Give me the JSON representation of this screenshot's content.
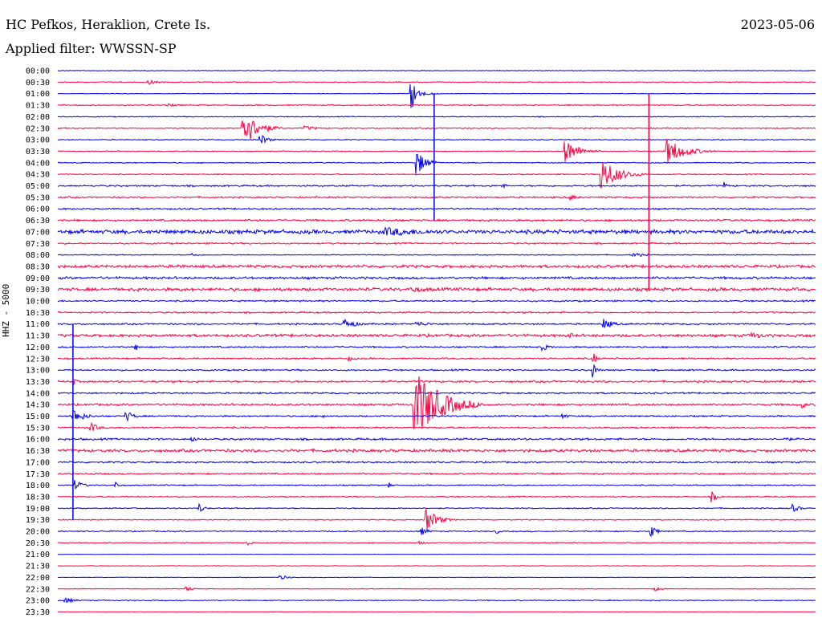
{
  "header": {
    "station": "HC Pefkos, Heraklion, Crete Is.",
    "date": "2023-05-06",
    "filter": "Applied filter: WWSSN-SP"
  },
  "chart_data": {
    "type": "line",
    "title": "HC Pefkos, Heraklion, Crete Is.",
    "ylabel": "HHZ - 5000",
    "row_labels": [
      "00:00",
      "00:30",
      "01:00",
      "01:30",
      "02:00",
      "02:30",
      "03:00",
      "03:30",
      "04:00",
      "04:30",
      "05:00",
      "05:30",
      "06:00",
      "06:30",
      "07:00",
      "07:30",
      "08:00",
      "08:30",
      "09:00",
      "09:30",
      "10:00",
      "10:30",
      "11:00",
      "11:30",
      "12:00",
      "12:30",
      "13:00",
      "13:30",
      "14:00",
      "14:30",
      "15:00",
      "15:30",
      "16:00",
      "16:30",
      "17:00",
      "17:30",
      "18:00",
      "18:30",
      "19:00",
      "19:30",
      "20:00",
      "20:30",
      "21:00",
      "21:30",
      "22:00",
      "22:30",
      "23:00",
      "23:30"
    ],
    "colors": {
      "even_rows": "#0000ee",
      "odd_rows": "#ff0040"
    },
    "noise_level": [
      0.3,
      0.5,
      0.3,
      0.6,
      0.5,
      0.6,
      0.5,
      0.5,
      0.5,
      0.5,
      0.8,
      0.8,
      0.8,
      1.0,
      2.0,
      0.8,
      0.5,
      1.4,
      1.2,
      1.6,
      0.8,
      0.8,
      0.8,
      1.4,
      0.8,
      0.8,
      0.8,
      1.0,
      0.8,
      1.0,
      0.8,
      0.8,
      1.0,
      1.4,
      0.8,
      0.8,
      0.6,
      0.6,
      0.6,
      0.5,
      0.6,
      0.5,
      0.2,
      0.3,
      0.3,
      0.3,
      0.5,
      0.2
    ],
    "events": [
      {
        "row": 1,
        "minute": 3.6,
        "amp": 3,
        "dur": 1.0
      },
      {
        "row": 2,
        "minute": 14.0,
        "amp": 33,
        "dur": 0.3
      },
      {
        "row": 2,
        "minute": 14.2,
        "amp": 5,
        "dur": 1.2
      },
      {
        "row": 3,
        "minute": 4.4,
        "amp": 2,
        "dur": 1.0
      },
      {
        "row": 5,
        "minute": 7.3,
        "amp": 26,
        "dur": 1.6
      },
      {
        "row": 5,
        "minute": 9.8,
        "amp": 3,
        "dur": 1.5
      },
      {
        "row": 6,
        "minute": 8.0,
        "amp": 8,
        "dur": 0.8
      },
      {
        "row": 7,
        "minute": 20.1,
        "amp": 15,
        "dur": 1.5
      },
      {
        "row": 7,
        "minute": 24.1,
        "amp": 17,
        "dur": 2.0
      },
      {
        "row": 8,
        "minute": 14.2,
        "amp": 17,
        "dur": 1.0
      },
      {
        "row": 9,
        "minute": 21.5,
        "amp": 22,
        "dur": 1.8
      },
      {
        "row": 10,
        "minute": 17.6,
        "amp": 4,
        "dur": 0.5
      },
      {
        "row": 10,
        "minute": 26.4,
        "amp": 5,
        "dur": 0.4
      },
      {
        "row": 11,
        "minute": 20.3,
        "amp": 4,
        "dur": 0.8
      },
      {
        "row": 14,
        "minute": 12.9,
        "amp": 6,
        "dur": 6.0
      },
      {
        "row": 16,
        "minute": 5.3,
        "amp": 3,
        "dur": 0.8
      },
      {
        "row": 16,
        "minute": 22.8,
        "amp": 3,
        "dur": 1.5
      },
      {
        "row": 17,
        "minute": 4.8,
        "amp": 3,
        "dur": 1.0
      },
      {
        "row": 19,
        "minute": 14.0,
        "amp": 4,
        "dur": 3.0
      },
      {
        "row": 22,
        "minute": 11.3,
        "amp": 7,
        "dur": 1.5
      },
      {
        "row": 22,
        "minute": 14.2,
        "amp": 4,
        "dur": 1.5
      },
      {
        "row": 22,
        "minute": 21.6,
        "amp": 8,
        "dur": 1.0
      },
      {
        "row": 23,
        "minute": 20.2,
        "amp": 4,
        "dur": 1.0
      },
      {
        "row": 23,
        "minute": 27.5,
        "amp": 4,
        "dur": 2.0
      },
      {
        "row": 24,
        "minute": 3.1,
        "amp": 4,
        "dur": 0.5
      },
      {
        "row": 24,
        "minute": 19.2,
        "amp": 5,
        "dur": 0.8
      },
      {
        "row": 25,
        "minute": 11.5,
        "amp": 4,
        "dur": 0.6
      },
      {
        "row": 25,
        "minute": 21.2,
        "amp": 8,
        "dur": 0.4
      },
      {
        "row": 26,
        "minute": 21.2,
        "amp": 10,
        "dur": 0.4
      },
      {
        "row": 27,
        "minute": 0.6,
        "amp": 5,
        "dur": 0.5
      },
      {
        "row": 29,
        "minute": 14.1,
        "amp": 48,
        "dur": 2.8
      },
      {
        "row": 29,
        "minute": 29.5,
        "amp": 5,
        "dur": 0.4
      },
      {
        "row": 30,
        "minute": 0.6,
        "amp": 10,
        "dur": 1.2
      },
      {
        "row": 30,
        "minute": 2.7,
        "amp": 8,
        "dur": 0.8
      },
      {
        "row": 30,
        "minute": 10.5,
        "amp": 3,
        "dur": 0.6
      },
      {
        "row": 30,
        "minute": 20.0,
        "amp": 4,
        "dur": 0.6
      },
      {
        "row": 31,
        "minute": 1.3,
        "amp": 7,
        "dur": 0.8
      },
      {
        "row": 32,
        "minute": 5.3,
        "amp": 5,
        "dur": 0.5
      },
      {
        "row": 32,
        "minute": 28.8,
        "amp": 3,
        "dur": 1.0
      },
      {
        "row": 36,
        "minute": 0.7,
        "amp": 7,
        "dur": 0.8
      },
      {
        "row": 36,
        "minute": 2.3,
        "amp": 5,
        "dur": 0.4
      },
      {
        "row": 36,
        "minute": 13.1,
        "amp": 4,
        "dur": 0.4
      },
      {
        "row": 37,
        "minute": 25.9,
        "amp": 7,
        "dur": 0.6
      },
      {
        "row": 38,
        "minute": 5.6,
        "amp": 6,
        "dur": 0.6
      },
      {
        "row": 38,
        "minute": 29.1,
        "amp": 5,
        "dur": 0.8
      },
      {
        "row": 39,
        "minute": 14.6,
        "amp": 15,
        "dur": 1.2
      },
      {
        "row": 40,
        "minute": 14.4,
        "amp": 5,
        "dur": 0.8
      },
      {
        "row": 40,
        "minute": 23.5,
        "amp": 8,
        "dur": 0.6
      },
      {
        "row": 40,
        "minute": 17.4,
        "amp": 4,
        "dur": 0.2
      },
      {
        "row": 41,
        "minute": 7.5,
        "amp": 4,
        "dur": 0.5
      },
      {
        "row": 41,
        "minute": 14.3,
        "amp": 3,
        "dur": 0.6
      },
      {
        "row": 44,
        "minute": 8.8,
        "amp": 3,
        "dur": 1.0
      },
      {
        "row": 45,
        "minute": 5.1,
        "amp": 4,
        "dur": 0.6
      },
      {
        "row": 45,
        "minute": 23.6,
        "amp": 3,
        "dur": 1.0
      },
      {
        "row": 46,
        "minute": 0.3,
        "amp": 4,
        "dur": 1.0
      }
    ],
    "long_spikes": [
      {
        "minute": 14.9,
        "start": "01:00",
        "end": "06:30",
        "color": "#0000ee"
      },
      {
        "minute": 23.4,
        "start": "01:00",
        "end": "09:30",
        "color": "#ff0040"
      },
      {
        "minute": 0.6,
        "start": "11:00",
        "end": "19:30",
        "color": "#0000ee"
      }
    ]
  }
}
